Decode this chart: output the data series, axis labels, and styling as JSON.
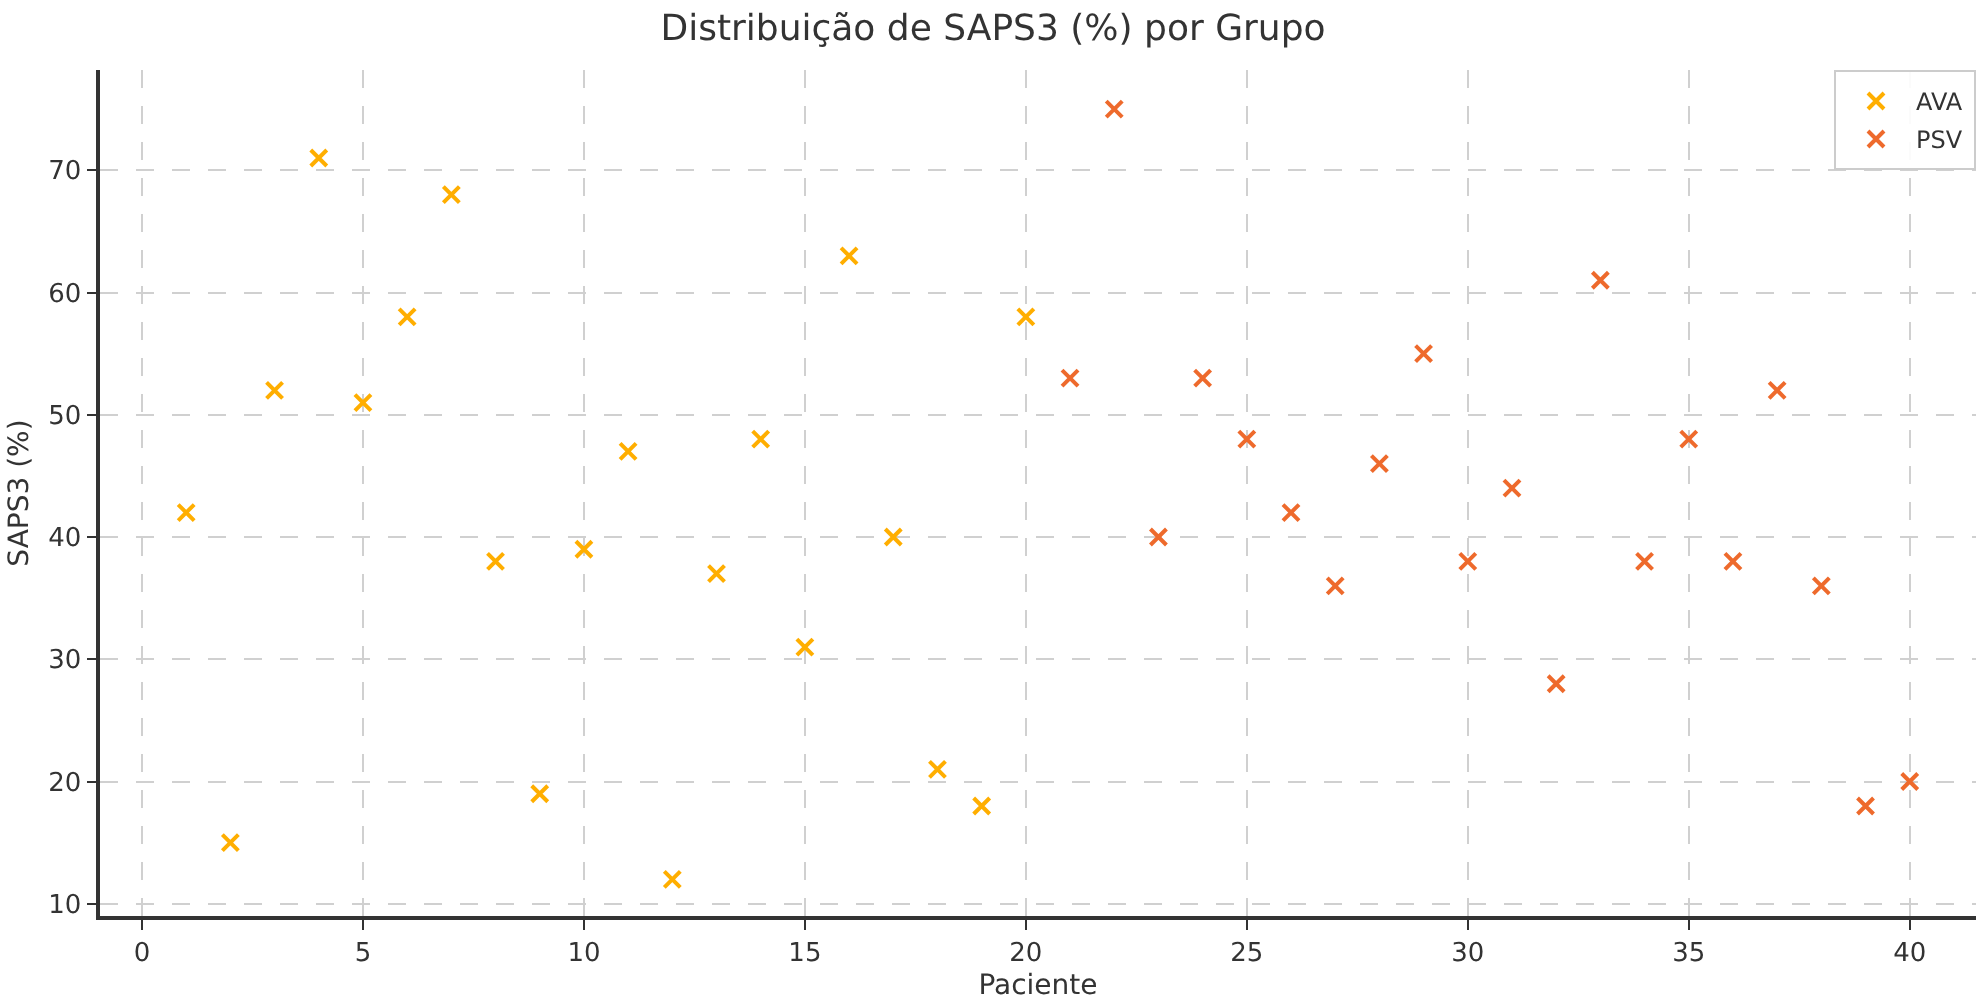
{
  "chart_data": {
    "type": "scatter",
    "title": "Distribuição de SAPS3 (%) por Grupo",
    "xlabel": "Paciente",
    "ylabel": "SAPS3 (%)",
    "series": [
      {
        "name": "AVA",
        "color": "#ffae00",
        "x": [
          1,
          2,
          3,
          4,
          5,
          6,
          7,
          8,
          9,
          10,
          11,
          12,
          13,
          14,
          15,
          16,
          17,
          18,
          19,
          20
        ],
        "values": [
          42,
          15,
          52,
          71,
          51,
          58,
          68,
          38,
          19,
          39,
          47,
          12,
          37,
          48,
          31,
          63,
          40,
          21,
          18,
          58
        ]
      },
      {
        "name": "PSV",
        "color": "#ee6a2c",
        "x": [
          21,
          22,
          23,
          24,
          25,
          26,
          27,
          28,
          29,
          30,
          31,
          32,
          33,
          34,
          35,
          36,
          37,
          38,
          39,
          40
        ],
        "values": [
          53,
          75,
          40,
          53,
          48,
          42,
          36,
          46,
          55,
          38,
          44,
          28,
          61,
          38,
          48,
          38,
          52,
          36,
          18,
          20
        ]
      }
    ],
    "xlim": [
      -0.95,
      41.5
    ],
    "xticks": [
      0,
      5,
      10,
      15,
      20,
      25,
      30,
      35,
      40
    ],
    "ylim": [
      9,
      78.2
    ],
    "yticks": [
      10,
      20,
      30,
      40,
      50,
      60,
      70
    ],
    "grid": true,
    "legend": "top right",
    "marker": "cross"
  }
}
